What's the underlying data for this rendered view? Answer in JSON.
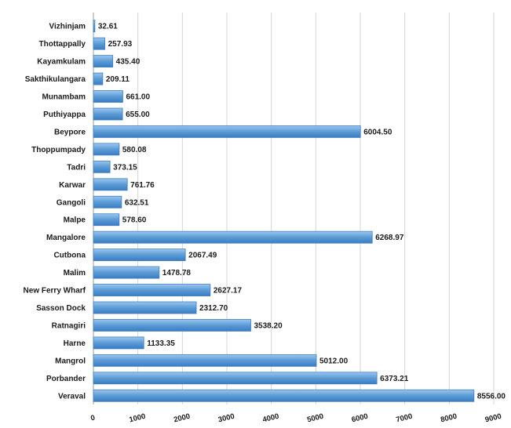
{
  "chart_data": {
    "type": "bar",
    "orientation": "horizontal",
    "title": "",
    "xlabel": "",
    "ylabel": "",
    "xlim": [
      0,
      9000
    ],
    "x_ticks": [
      0,
      1000,
      2000,
      3000,
      4000,
      5000,
      6000,
      7000,
      8000,
      9000
    ],
    "grid": true,
    "legend": "none",
    "bar_color": "#5b9bd5",
    "categories": [
      "Vizhinjam",
      "Thottappally",
      "Kayamkulam",
      "Sakthikulangara",
      "Munambam",
      "Puthiyappa",
      "Beypore",
      "Thoppumpady",
      "Tadri",
      "Karwar",
      "Gangoli",
      "Malpe",
      "Mangalore",
      "Cutbona",
      "Malim",
      "New Ferry Wharf",
      "Sasson Dock",
      "Ratnagiri",
      "Harne",
      "Mangrol",
      "Porbander",
      "Veraval"
    ],
    "values": [
      32.61,
      257.93,
      435.4,
      209.11,
      661.0,
      655.0,
      6004.5,
      580.08,
      373.15,
      761.76,
      632.51,
      578.6,
      6268.97,
      2067.49,
      1478.78,
      2627.17,
      2312.7,
      3538.2,
      1133.35,
      5012.0,
      6373.21,
      8556.0
    ],
    "value_labels": [
      "32.61",
      "257.93",
      "435.40",
      "209.11",
      "661.00",
      "655.00",
      "6004.50",
      "580.08",
      "373.15",
      "761.76",
      "632.51",
      "578.60",
      "6268.97",
      "2067.49",
      "1478.78",
      "2627.17",
      "2312.70",
      "3538.20",
      "1133.35",
      "5012.00",
      "6373.21",
      "8556.00"
    ]
  }
}
